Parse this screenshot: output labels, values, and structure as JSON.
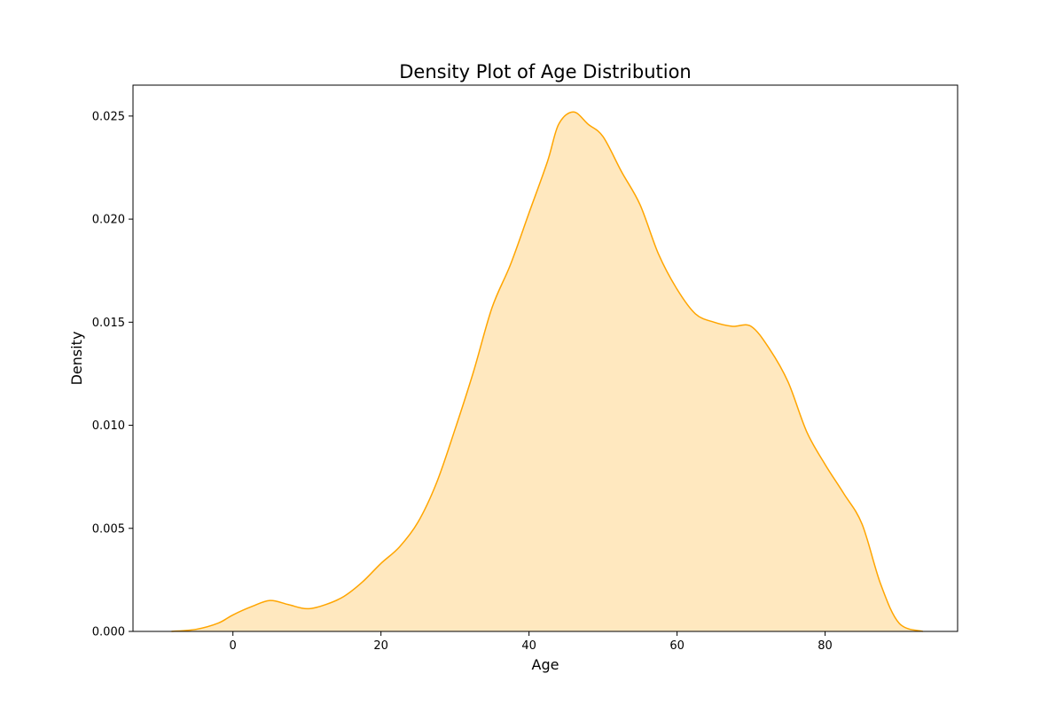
{
  "chart_data": {
    "type": "area",
    "title": "Density Plot of Age Distribution",
    "xlabel": "Age",
    "ylabel": "Density",
    "xlim": [
      -13.5,
      97.9
    ],
    "ylim": [
      0,
      0.0265
    ],
    "xticks": [
      0,
      20,
      40,
      60,
      80
    ],
    "xtick_labels": [
      "0",
      "20",
      "40",
      "60",
      "80"
    ],
    "yticks": [
      0,
      0.005,
      0.01,
      0.015,
      0.02,
      0.025
    ],
    "ytick_labels": [
      "0.000",
      "0.005",
      "0.010",
      "0.015",
      "0.020",
      "0.025"
    ],
    "grid": false,
    "legend": "none",
    "series": [
      {
        "x": [
          -8.3,
          -5,
          -2,
          0,
          2.5,
          5,
          7.5,
          10,
          12.5,
          15,
          17.5,
          20,
          22.5,
          25,
          27.5,
          30,
          32.5,
          35,
          37.5,
          40,
          42.5,
          44,
          46,
          48,
          50,
          52.5,
          55,
          57.5,
          60,
          62.5,
          65,
          67.5,
          70,
          72.5,
          75,
          77.5,
          80,
          82.5,
          85,
          87.5,
          90,
          93.2
        ],
        "y": [
          0,
          0.0001,
          0.0004,
          0.0008,
          0.0012,
          0.0015,
          0.0013,
          0.0011,
          0.0013,
          0.0017,
          0.0024,
          0.0033,
          0.0041,
          0.0053,
          0.0072,
          0.0098,
          0.0126,
          0.0157,
          0.0178,
          0.0203,
          0.0228,
          0.0246,
          0.0252,
          0.0246,
          0.024,
          0.0223,
          0.0207,
          0.0183,
          0.0166,
          0.0154,
          0.015,
          0.0148,
          0.0148,
          0.0137,
          0.0121,
          0.0097,
          0.0081,
          0.0067,
          0.0052,
          0.0023,
          0.0004,
          0
        ]
      }
    ],
    "colors": {
      "line": "#ffa500",
      "fill": "#ffa500",
      "fill_opacity": 0.25
    }
  }
}
